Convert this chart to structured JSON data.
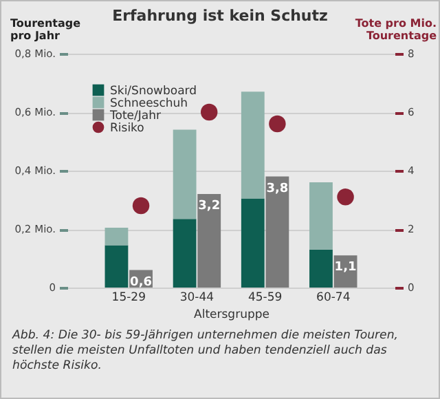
{
  "chart_data": {
    "type": "bar",
    "title": "Erfahrung ist kein Schutz",
    "xlabel": "Altersgruppe",
    "ylabel": "Tourentage pro Jahr",
    "y2label": "Tote pro Mio. Tourentage",
    "categories": [
      "15-29",
      "30-44",
      "45-59",
      "60-74"
    ],
    "stacked": true,
    "series": [
      {
        "name": "Ski/Snowboard",
        "color": "#0e5f52",
        "values": [
          0.145,
          0.235,
          0.305,
          0.13
        ]
      },
      {
        "name": "Schneeschuh",
        "color": "#8fb3ab",
        "values": [
          0.06,
          0.305,
          0.365,
          0.23
        ]
      },
      {
        "name": "Tote/Jahr",
        "type": "bar",
        "axis": "y2",
        "color": "#7a7a7a",
        "values": [
          0.6,
          3.2,
          3.8,
          1.1
        ],
        "value_labels": [
          "0,6",
          "3,2",
          "3,8",
          "1,1"
        ]
      },
      {
        "name": "Risiko",
        "type": "scatter",
        "axis": "y2",
        "marker": "circle",
        "color": "#8b2436",
        "values": [
          2.8,
          6.0,
          5.6,
          3.1
        ]
      }
    ],
    "ylim": [
      0,
      0.8
    ],
    "yticks": [
      {
        "value": 0,
        "label": "0"
      },
      {
        "value": 0.2,
        "label": "0,2 Mio."
      },
      {
        "value": 0.4,
        "label": "0,4 Mio."
      },
      {
        "value": 0.6,
        "label": "0,6 Mio."
      },
      {
        "value": 0.8,
        "label": "0,8 Mio."
      }
    ],
    "y2lim": [
      0,
      8
    ],
    "y2ticks": [
      0,
      2,
      4,
      6,
      8
    ],
    "grid": "y",
    "legend": "top left",
    "annotations": [
      "Abb. 4: Die 30- bis 59-Jährigen unternehmen die meisten Touren, stellen die meisten Unfalltoten und haben tendenziell auch das höchste Risiko."
    ]
  }
}
